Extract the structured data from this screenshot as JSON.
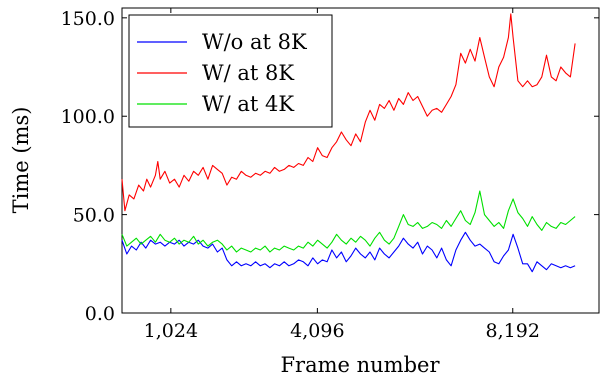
{
  "chart_data": {
    "type": "line",
    "title": "",
    "xlabel": "Frame number",
    "ylabel": "Time (ms)",
    "xlim": [
      0,
      10000
    ],
    "ylim": [
      0,
      155
    ],
    "xticks": [
      {
        "value": 1024,
        "label": "1,024"
      },
      {
        "value": 4096,
        "label": "4,096"
      },
      {
        "value": 8192,
        "label": "8,192"
      }
    ],
    "yticks": [
      {
        "value": 0,
        "label": "0.0"
      },
      {
        "value": 50,
        "label": "50.0"
      },
      {
        "value": 100,
        "label": "100.0"
      },
      {
        "value": 150,
        "label": "150.0"
      }
    ],
    "grid": false,
    "legend_position": "top-left",
    "series": [
      {
        "name": "W/o at 8K",
        "color": "#0000ff",
        "points": [
          [
            0,
            37
          ],
          [
            100,
            30
          ],
          [
            200,
            34
          ],
          [
            300,
            32
          ],
          [
            400,
            36
          ],
          [
            500,
            33
          ],
          [
            600,
            37
          ],
          [
            700,
            35
          ],
          [
            800,
            36
          ],
          [
            900,
            34
          ],
          [
            1000,
            36
          ],
          [
            1100,
            35
          ],
          [
            1200,
            37
          ],
          [
            1300,
            34
          ],
          [
            1400,
            36
          ],
          [
            1500,
            35
          ],
          [
            1600,
            37
          ],
          [
            1700,
            34
          ],
          [
            1800,
            33
          ],
          [
            1900,
            35
          ],
          [
            2000,
            31
          ],
          [
            2100,
            33
          ],
          [
            2200,
            27
          ],
          [
            2300,
            24
          ],
          [
            2400,
            26
          ],
          [
            2500,
            24
          ],
          [
            2600,
            25
          ],
          [
            2700,
            24
          ],
          [
            2800,
            26
          ],
          [
            2900,
            24
          ],
          [
            3000,
            25
          ],
          [
            3100,
            23
          ],
          [
            3200,
            25
          ],
          [
            3300,
            24
          ],
          [
            3400,
            26
          ],
          [
            3500,
            24
          ],
          [
            3600,
            25
          ],
          [
            3700,
            27
          ],
          [
            3800,
            26
          ],
          [
            3900,
            24
          ],
          [
            4000,
            28
          ],
          [
            4100,
            25
          ],
          [
            4200,
            27
          ],
          [
            4300,
            26
          ],
          [
            4400,
            32
          ],
          [
            4500,
            28
          ],
          [
            4600,
            31
          ],
          [
            4700,
            26
          ],
          [
            4800,
            29
          ],
          [
            4900,
            33
          ],
          [
            5000,
            30
          ],
          [
            5100,
            28
          ],
          [
            5200,
            31
          ],
          [
            5300,
            27
          ],
          [
            5400,
            33
          ],
          [
            5500,
            30
          ],
          [
            5600,
            28
          ],
          [
            5700,
            31
          ],
          [
            5800,
            34
          ],
          [
            5900,
            38
          ],
          [
            6000,
            35
          ],
          [
            6100,
            33
          ],
          [
            6200,
            36
          ],
          [
            6300,
            30
          ],
          [
            6400,
            34
          ],
          [
            6500,
            32
          ],
          [
            6600,
            28
          ],
          [
            6700,
            33
          ],
          [
            6800,
            27
          ],
          [
            6900,
            24
          ],
          [
            7000,
            32
          ],
          [
            7100,
            37
          ],
          [
            7200,
            41
          ],
          [
            7300,
            37
          ],
          [
            7400,
            34
          ],
          [
            7500,
            35
          ],
          [
            7600,
            33
          ],
          [
            7700,
            31
          ],
          [
            7800,
            26
          ],
          [
            7900,
            25
          ],
          [
            8000,
            29
          ],
          [
            8100,
            32
          ],
          [
            8200,
            40
          ],
          [
            8300,
            33
          ],
          [
            8400,
            25
          ],
          [
            8500,
            25
          ],
          [
            8600,
            21
          ],
          [
            8700,
            26
          ],
          [
            8800,
            24
          ],
          [
            8900,
            22
          ],
          [
            9000,
            25
          ],
          [
            9100,
            24
          ],
          [
            9200,
            23
          ],
          [
            9300,
            24
          ],
          [
            9400,
            23
          ],
          [
            9500,
            24
          ]
        ]
      },
      {
        "name": "W/ at 8K",
        "color": "#ff0000",
        "points": [
          [
            0,
            68
          ],
          [
            60,
            52
          ],
          [
            150,
            60
          ],
          [
            250,
            58
          ],
          [
            350,
            65
          ],
          [
            450,
            62
          ],
          [
            520,
            68
          ],
          [
            600,
            64
          ],
          [
            700,
            70
          ],
          [
            750,
            77
          ],
          [
            800,
            68
          ],
          [
            900,
            72
          ],
          [
            1000,
            66
          ],
          [
            1100,
            68
          ],
          [
            1200,
            64
          ],
          [
            1300,
            70
          ],
          [
            1400,
            67
          ],
          [
            1500,
            72
          ],
          [
            1600,
            70
          ],
          [
            1700,
            74
          ],
          [
            1800,
            68
          ],
          [
            1900,
            75
          ],
          [
            2000,
            73
          ],
          [
            2100,
            71
          ],
          [
            2200,
            65
          ],
          [
            2300,
            69
          ],
          [
            2400,
            68
          ],
          [
            2500,
            72
          ],
          [
            2600,
            70
          ],
          [
            2700,
            69
          ],
          [
            2800,
            71
          ],
          [
            2900,
            70
          ],
          [
            3000,
            72
          ],
          [
            3100,
            71
          ],
          [
            3200,
            74
          ],
          [
            3300,
            72
          ],
          [
            3400,
            73
          ],
          [
            3500,
            75
          ],
          [
            3600,
            74
          ],
          [
            3700,
            76
          ],
          [
            3800,
            75
          ],
          [
            3900,
            79
          ],
          [
            4000,
            77
          ],
          [
            4100,
            84
          ],
          [
            4200,
            80
          ],
          [
            4300,
            79
          ],
          [
            4400,
            84
          ],
          [
            4500,
            87
          ],
          [
            4600,
            92
          ],
          [
            4700,
            88
          ],
          [
            4800,
            85
          ],
          [
            4900,
            91
          ],
          [
            5000,
            87
          ],
          [
            5100,
            97
          ],
          [
            5200,
            103
          ],
          [
            5300,
            98
          ],
          [
            5400,
            106
          ],
          [
            5500,
            104
          ],
          [
            5600,
            108
          ],
          [
            5700,
            103
          ],
          [
            5800,
            109
          ],
          [
            5900,
            106
          ],
          [
            6000,
            112
          ],
          [
            6100,
            108
          ],
          [
            6200,
            110
          ],
          [
            6300,
            105
          ],
          [
            6400,
            100
          ],
          [
            6500,
            103
          ],
          [
            6600,
            104
          ],
          [
            6700,
            102
          ],
          [
            6800,
            106
          ],
          [
            6900,
            110
          ],
          [
            7000,
            116
          ],
          [
            7100,
            132
          ],
          [
            7200,
            127
          ],
          [
            7300,
            134
          ],
          [
            7400,
            128
          ],
          [
            7500,
            140
          ],
          [
            7600,
            130
          ],
          [
            7700,
            120
          ],
          [
            7800,
            115
          ],
          [
            7900,
            125
          ],
          [
            8000,
            130
          ],
          [
            8100,
            140
          ],
          [
            8150,
            152
          ],
          [
            8200,
            140
          ],
          [
            8300,
            118
          ],
          [
            8400,
            115
          ],
          [
            8500,
            118
          ],
          [
            8600,
            115
          ],
          [
            8700,
            116
          ],
          [
            8800,
            120
          ],
          [
            8900,
            131
          ],
          [
            9000,
            120
          ],
          [
            9100,
            118
          ],
          [
            9200,
            125
          ],
          [
            9300,
            122
          ],
          [
            9400,
            120
          ],
          [
            9500,
            137
          ]
        ]
      },
      {
        "name": "W/ at 4K",
        "color": "#00e000",
        "points": [
          [
            0,
            40
          ],
          [
            100,
            34
          ],
          [
            200,
            36
          ],
          [
            300,
            38
          ],
          [
            400,
            35
          ],
          [
            500,
            37
          ],
          [
            600,
            39
          ],
          [
            700,
            36
          ],
          [
            800,
            40
          ],
          [
            900,
            37
          ],
          [
            1000,
            36
          ],
          [
            1100,
            38
          ],
          [
            1200,
            35
          ],
          [
            1300,
            37
          ],
          [
            1400,
            36
          ],
          [
            1500,
            39
          ],
          [
            1600,
            35
          ],
          [
            1700,
            37
          ],
          [
            1800,
            34
          ],
          [
            1900,
            36
          ],
          [
            2000,
            37
          ],
          [
            2100,
            35
          ],
          [
            2200,
            32
          ],
          [
            2300,
            34
          ],
          [
            2400,
            31
          ],
          [
            2500,
            33
          ],
          [
            2600,
            32
          ],
          [
            2700,
            31
          ],
          [
            2800,
            33
          ],
          [
            2900,
            32
          ],
          [
            3000,
            34
          ],
          [
            3100,
            31
          ],
          [
            3200,
            33
          ],
          [
            3300,
            32
          ],
          [
            3400,
            34
          ],
          [
            3500,
            33
          ],
          [
            3600,
            32
          ],
          [
            3700,
            34
          ],
          [
            3800,
            33
          ],
          [
            3900,
            36
          ],
          [
            4000,
            34
          ],
          [
            4100,
            37
          ],
          [
            4200,
            35
          ],
          [
            4300,
            33
          ],
          [
            4400,
            36
          ],
          [
            4500,
            40
          ],
          [
            4600,
            37
          ],
          [
            4700,
            35
          ],
          [
            4800,
            38
          ],
          [
            4900,
            36
          ],
          [
            5000,
            39
          ],
          [
            5100,
            37
          ],
          [
            5200,
            34
          ],
          [
            5300,
            38
          ],
          [
            5400,
            41
          ],
          [
            5500,
            37
          ],
          [
            5600,
            35
          ],
          [
            5700,
            38
          ],
          [
            5800,
            44
          ],
          [
            5900,
            50
          ],
          [
            6000,
            45
          ],
          [
            6100,
            44
          ],
          [
            6200,
            46
          ],
          [
            6300,
            43
          ],
          [
            6400,
            44
          ],
          [
            6500,
            46
          ],
          [
            6600,
            45
          ],
          [
            6700,
            43
          ],
          [
            6800,
            47
          ],
          [
            6900,
            44
          ],
          [
            7000,
            48
          ],
          [
            7100,
            52
          ],
          [
            7200,
            47
          ],
          [
            7300,
            45
          ],
          [
            7400,
            51
          ],
          [
            7500,
            62
          ],
          [
            7600,
            50
          ],
          [
            7700,
            47
          ],
          [
            7800,
            44
          ],
          [
            7900,
            46
          ],
          [
            8000,
            43
          ],
          [
            8100,
            52
          ],
          [
            8200,
            58
          ],
          [
            8300,
            51
          ],
          [
            8400,
            48
          ],
          [
            8500,
            44
          ],
          [
            8600,
            49
          ],
          [
            8700,
            45
          ],
          [
            8800,
            42
          ],
          [
            8900,
            46
          ],
          [
            9000,
            44
          ],
          [
            9100,
            43
          ],
          [
            9200,
            46
          ],
          [
            9300,
            45
          ],
          [
            9400,
            47
          ],
          [
            9500,
            49
          ]
        ]
      }
    ]
  }
}
